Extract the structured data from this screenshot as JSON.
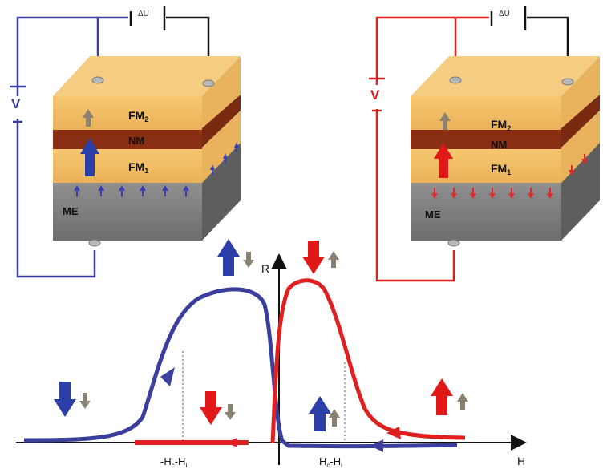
{
  "left_device": {
    "voltage_label": "V",
    "delta_u_label": "ΔU",
    "layers": {
      "fm2": "FM",
      "fm2_sub": "2",
      "nm": "NM",
      "fm1": "FM",
      "fm1_sub": "1",
      "me": "ME"
    },
    "color": "#3a3f9e"
  },
  "right_device": {
    "voltage_label": "V",
    "delta_u_label": "ΔU",
    "layers": {
      "fm2": "FM",
      "fm2_sub": "2",
      "nm": "NM",
      "fm1": "FM",
      "fm1_sub": "1",
      "me": "ME"
    },
    "color": "#e02020"
  },
  "graph": {
    "y_axis_label": "R",
    "x_axis_label": "H",
    "tick_left": "-H",
    "tick_left_sub1": "c",
    "tick_left_mid": "-H",
    "tick_left_sub2": "i",
    "tick_right": "H",
    "tick_right_sub1": "c",
    "tick_right_mid": "-H",
    "tick_right_sub2": "i",
    "blue_curve_color": "#3a3f9e",
    "red_curve_color": "#e02020"
  }
}
